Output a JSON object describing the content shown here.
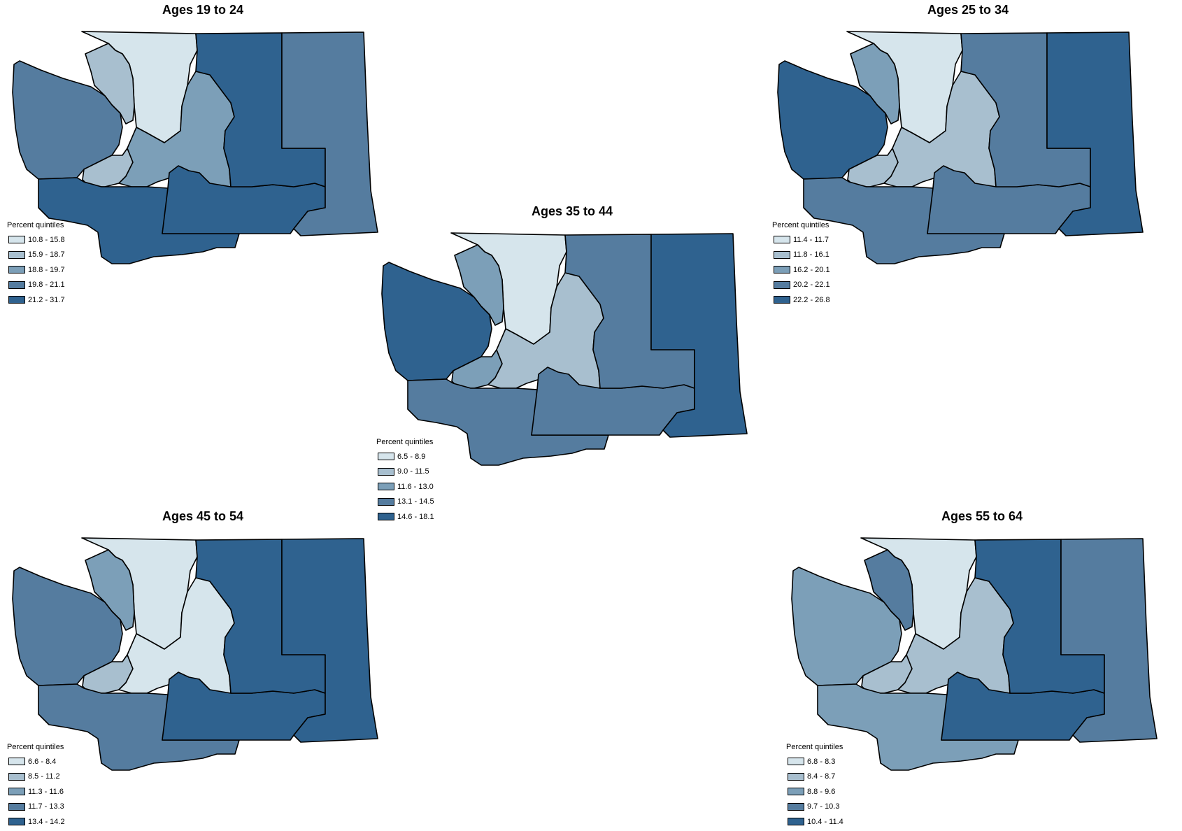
{
  "legend_title": "Percent quintiles",
  "quintile_colors": [
    "#d6e5ec",
    "#a8bfcf",
    "#7c9fb8",
    "#557c9f",
    "#2f628f"
  ],
  "panels": [
    {
      "title": "Ages 19 to 24",
      "legend": [
        "10.8 - 15.8",
        "15.9 - 18.7",
        "18.8 - 19.7",
        "19.8 - 21.1",
        "21.2 - 31.7"
      ],
      "region_quintiles": {
        "northwest": 4,
        "southwest": 5,
        "north_central": 1,
        "skagit": 2,
        "central": 3,
        "king": 2,
        "south_central": 5,
        "east": 5,
        "far_east": 4
      }
    },
    {
      "title": "Ages 35 to 44",
      "legend": [
        "6.5 - 8.9",
        "9.0 - 11.5",
        "11.6 - 13.0",
        "13.1 - 14.5",
        "14.6 - 18.1"
      ],
      "region_quintiles": {
        "northwest": 5,
        "southwest": 4,
        "north_central": 1,
        "skagit": 3,
        "central": 2,
        "king": 3,
        "south_central": 4,
        "east": 4,
        "far_east": 5
      }
    },
    {
      "title": "Ages 25 to 34",
      "legend": [
        "11.4 - 11.7",
        "11.8 - 16.1",
        "16.2 - 20.1",
        "20.2 - 22.1",
        "22.2 - 26.8"
      ],
      "region_quintiles": {
        "northwest": 5,
        "southwest": 4,
        "north_central": 1,
        "skagit": 3,
        "central": 2,
        "king": 2,
        "south_central": 4,
        "east": 4,
        "far_east": 5
      }
    },
    {
      "title": "Ages 45 to 54",
      "legend": [
        "6.6 - 8.4",
        "8.5 - 11.2",
        "11.3 - 11.6",
        "11.7 - 13.3",
        "13.4 - 14.2"
      ],
      "region_quintiles": {
        "northwest": 4,
        "southwest": 4,
        "north_central": 1,
        "skagit": 3,
        "central": 1,
        "king": 2,
        "south_central": 5,
        "east": 5,
        "far_east": 5
      }
    },
    {
      "title": "Ages 55 to 64",
      "legend": [
        "6.8 - 8.3",
        "8.4 - 8.7",
        "8.8 - 9.6",
        "9.7 - 10.3",
        "10.4 - 11.4"
      ],
      "region_quintiles": {
        "northwest": 3,
        "southwest": 3,
        "north_central": 1,
        "skagit": 4,
        "central": 2,
        "king": 2,
        "south_central": 5,
        "east": 5,
        "far_east": 4
      }
    }
  ]
}
